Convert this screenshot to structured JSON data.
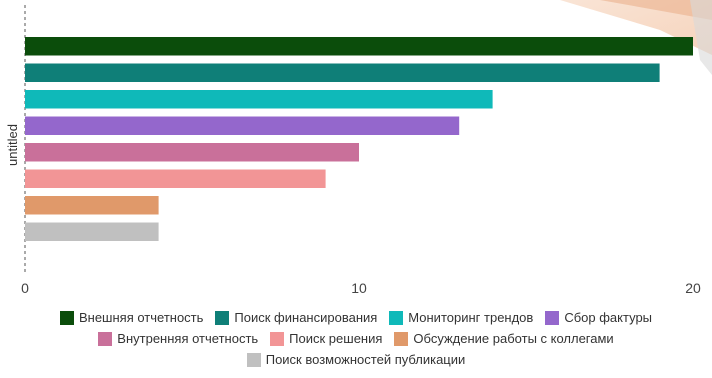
{
  "chart_data": {
    "type": "bar",
    "orientation": "horizontal",
    "ylabel": "untitled",
    "xlabel": "",
    "xlim": [
      0,
      20
    ],
    "xticks": [
      0,
      10,
      20
    ],
    "grid": false,
    "legend_position": "bottom",
    "series": [
      {
        "name": "Внешняя отчетность",
        "value": 20,
        "color": "#0b4d0b"
      },
      {
        "name": "Поиск финансирования",
        "value": 19,
        "color": "#0f7f78"
      },
      {
        "name": "Мониторинг трендов",
        "value": 14,
        "color": "#0fb9b9"
      },
      {
        "name": "Сбор фактуры",
        "value": 13,
        "color": "#9467cc"
      },
      {
        "name": "Внутренняя отчетность",
        "value": 10,
        "color": "#c9709a"
      },
      {
        "name": "Поиск решения",
        "value": 9,
        "color": "#f29596"
      },
      {
        "name": "Обсуждение работы с коллегами",
        "value": 4,
        "color": "#e0996a"
      },
      {
        "name": "Поиск возможностей публикации",
        "value": 4,
        "color": "#c0c0c0"
      }
    ]
  }
}
